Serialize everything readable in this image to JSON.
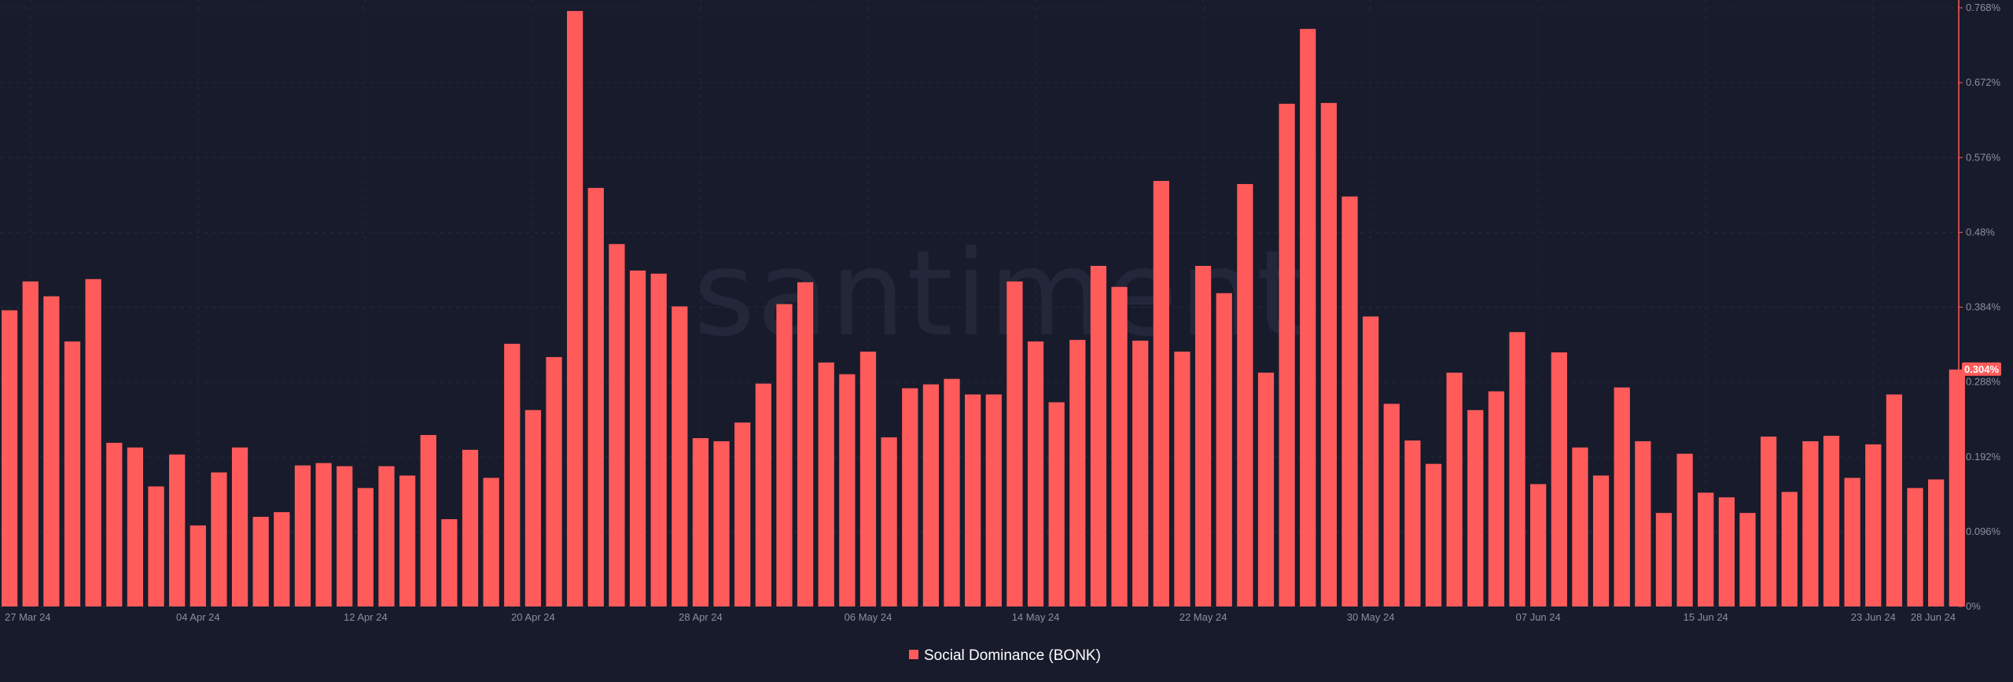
{
  "brand": {
    "watermark": "santiment"
  },
  "colors": {
    "background": "#181b2b",
    "bar": "#ff5b5b",
    "axis": "#ff5b5b",
    "grid": "#262a3c",
    "tick_text": "#8a8fa3",
    "legend_text": "#ffffff",
    "watermark": "#232739"
  },
  "legend": {
    "label": "Social Dominance (BONK)",
    "position": "bottom-center"
  },
  "current_value_label": "0.304%",
  "chart_data": {
    "type": "bar",
    "title": "",
    "xlabel": "",
    "ylabel": "",
    "series": [
      {
        "name": "Social Dominance (BONK)",
        "start_date": "2024-03-26",
        "end_date": "2024-06-28",
        "unit": "%",
        "values": [
          0.38,
          0.417,
          0.398,
          0.34,
          0.42,
          0.21,
          0.204,
          0.154,
          0.195,
          0.104,
          0.172,
          0.204,
          0.115,
          0.121,
          0.181,
          0.184,
          0.18,
          0.152,
          0.18,
          0.168,
          0.22,
          0.112,
          0.201,
          0.165,
          0.337,
          0.252,
          0.32,
          0.764,
          0.537,
          0.465,
          0.431,
          0.427,
          0.385,
          0.216,
          0.212,
          0.236,
          0.286,
          0.388,
          0.416,
          0.313,
          0.298,
          0.327,
          0.217,
          0.28,
          0.285,
          0.292,
          0.272,
          0.272,
          0.417,
          0.34,
          0.262,
          0.342,
          0.437,
          0.41,
          0.341,
          0.546,
          0.327,
          0.437,
          0.402,
          0.542,
          0.3,
          0.645,
          0.741,
          0.646,
          0.526,
          0.372,
          0.26,
          0.213,
          0.183,
          0.3,
          0.252,
          0.276,
          0.352,
          0.157,
          0.326,
          0.204,
          0.168,
          0.281,
          0.212,
          0.12,
          0.196,
          0.146,
          0.14,
          0.12,
          0.218,
          0.147,
          0.212,
          0.219,
          0.165,
          0.208,
          0.272,
          0.152,
          0.163,
          0.304
        ]
      }
    ],
    "x_ticks": [
      "27 Mar 24",
      "04 Apr 24",
      "12 Apr 24",
      "20 Apr 24",
      "28 Apr 24",
      "06 May 24",
      "14 May 24",
      "22 May 24",
      "30 May 24",
      "07 Jun 24",
      "15 Jun 24",
      "23 Jun 24",
      "28 Jun 24"
    ],
    "y_ticks": [
      "0%",
      "0.096%",
      "0.192%",
      "0.288%",
      "0.384%",
      "0.48%",
      "0.576%",
      "0.672%",
      "0.768%"
    ],
    "ylim": [
      0,
      0.768
    ],
    "grid": true,
    "y_axis_side": "right"
  }
}
